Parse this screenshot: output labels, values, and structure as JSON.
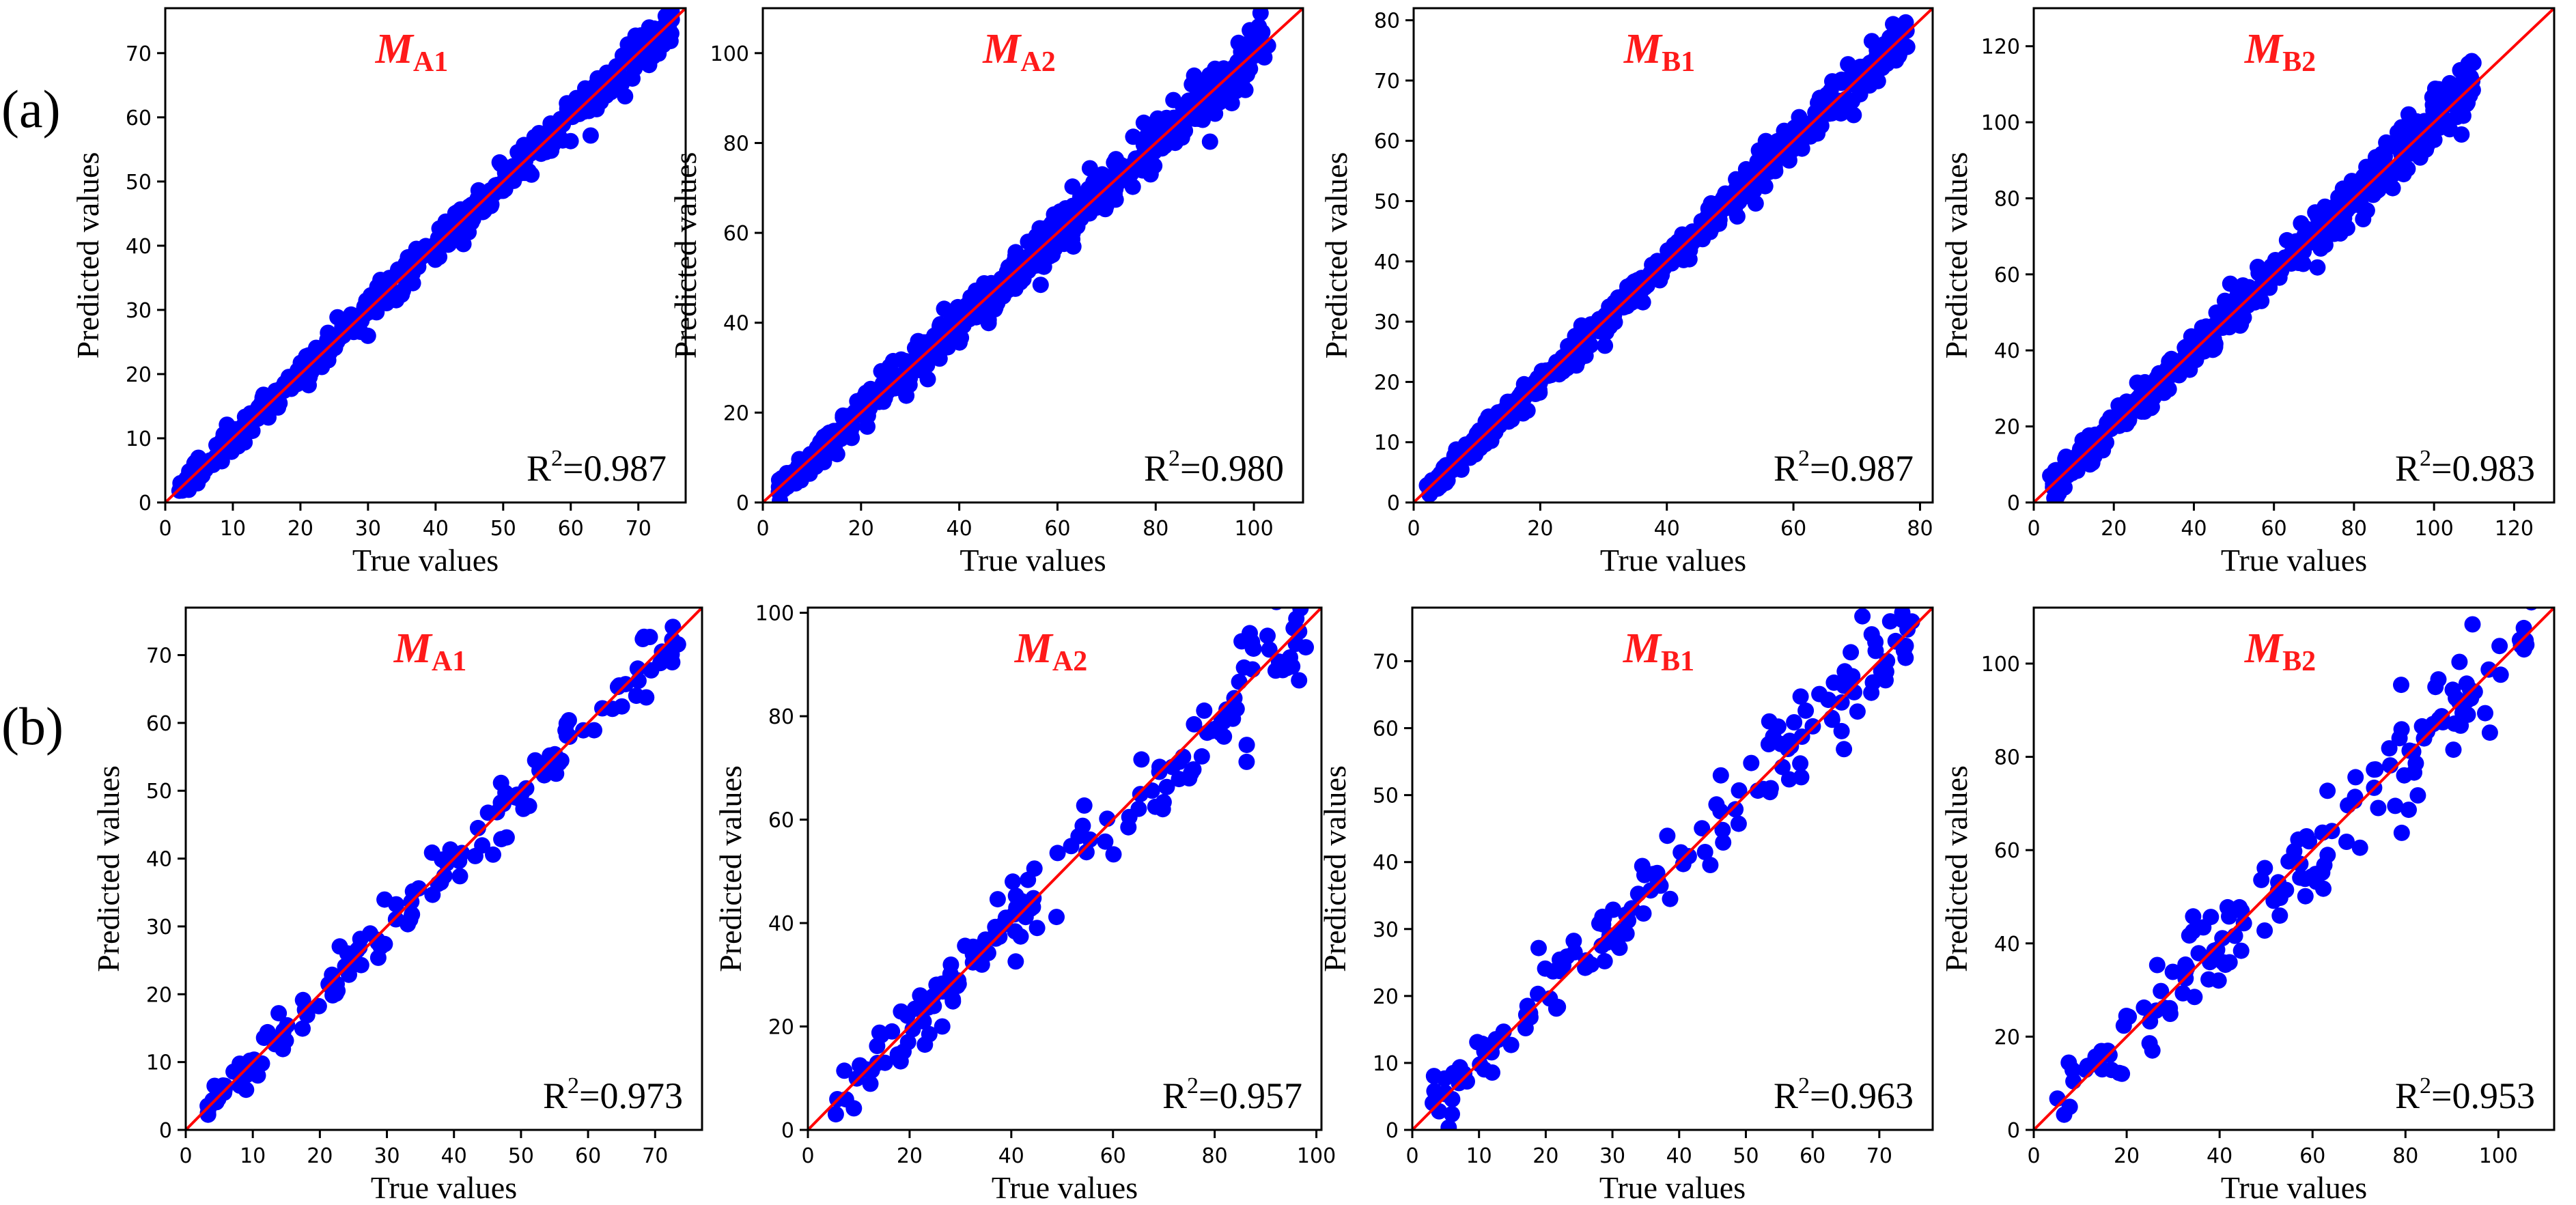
{
  "figure": {
    "row_labels": [
      "(a)",
      "(b)"
    ]
  },
  "colors": {
    "points": "#0000ff",
    "line": "#ff0000",
    "title": "#ff1a1a",
    "axis": "#000000"
  },
  "chart_data": [
    {
      "type": "scatter",
      "row": 0,
      "title_main": "M",
      "title_sub": "A1",
      "xlabel": "True values",
      "ylabel": "Predicted values",
      "r2_prefix": "R",
      "r2_sup": "2",
      "r2_value": "=0.987",
      "xlim": [
        0,
        77
      ],
      "ylim": [
        0,
        77
      ],
      "xticks": [
        0,
        10,
        20,
        30,
        40,
        50,
        60,
        70
      ],
      "yticks": [
        0,
        10,
        20,
        30,
        40,
        50,
        60,
        70
      ],
      "n_points": 460,
      "x_min": 2,
      "x_max": 75,
      "noise": 1.3,
      "reference_line": "y = x"
    },
    {
      "type": "scatter",
      "row": 0,
      "title_main": "M",
      "title_sub": "A2",
      "xlabel": "True values",
      "ylabel": "Predicted values",
      "r2_prefix": "R",
      "r2_sup": "2",
      "r2_value": "=0.980",
      "xlim": [
        0,
        110
      ],
      "ylim": [
        0,
        110
      ],
      "xticks": [
        0,
        20,
        40,
        60,
        80,
        100
      ],
      "yticks": [
        0,
        20,
        40,
        60,
        80,
        100
      ],
      "n_points": 560,
      "x_min": 3,
      "x_max": 103,
      "noise": 2.6,
      "reference_line": "y = x"
    },
    {
      "type": "scatter",
      "row": 0,
      "title_main": "M",
      "title_sub": "B1",
      "xlabel": "True values",
      "ylabel": "Predicted values",
      "r2_prefix": "R",
      "r2_sup": "2",
      "r2_value": "=0.987",
      "xlim": [
        0,
        82
      ],
      "ylim": [
        0,
        82
      ],
      "xticks": [
        0,
        20,
        40,
        60,
        80
      ],
      "yticks": [
        0,
        10,
        20,
        30,
        40,
        50,
        60,
        70,
        80
      ],
      "n_points": 520,
      "x_min": 2,
      "x_max": 78,
      "noise": 1.4,
      "reference_line": "y = x"
    },
    {
      "type": "scatter",
      "row": 0,
      "title_main": "M",
      "title_sub": "B2",
      "xlabel": "True values",
      "ylabel": "Predicted values",
      "r2_prefix": "R",
      "r2_sup": "2",
      "r2_value": "=0.983",
      "xlim": [
        0,
        130
      ],
      "ylim": [
        0,
        130
      ],
      "xticks": [
        0,
        20,
        40,
        60,
        80,
        100,
        120
      ],
      "yticks": [
        0,
        20,
        40,
        60,
        80,
        100,
        120
      ],
      "n_points": 520,
      "x_min": 4,
      "x_max": 110,
      "noise": 2.7,
      "reference_line": "y = x"
    },
    {
      "type": "scatter",
      "row": 1,
      "title_main": "M",
      "title_sub": "A1",
      "xlabel": "True values",
      "ylabel": "Predicted values",
      "r2_prefix": "R",
      "r2_sup": "2",
      "r2_value": "=0.973",
      "xlim": [
        0,
        77
      ],
      "ylim": [
        0,
        77
      ],
      "xticks": [
        0,
        10,
        20,
        30,
        40,
        50,
        60,
        70
      ],
      "yticks": [
        0,
        10,
        20,
        30,
        40,
        50,
        60,
        70
      ],
      "n_points": 150,
      "x_min": 3,
      "x_max": 74,
      "noise": 2.0,
      "reference_line": "y = x"
    },
    {
      "type": "scatter",
      "row": 1,
      "title_main": "M",
      "title_sub": "A2",
      "xlabel": "True values",
      "ylabel": "Predicted values",
      "r2_prefix": "R",
      "r2_sup": "2",
      "r2_value": "=0.957",
      "xlim": [
        0,
        101
      ],
      "ylim": [
        0,
        101
      ],
      "xticks": [
        0,
        20,
        40,
        60,
        80,
        100
      ],
      "yticks": [
        0,
        20,
        40,
        60,
        80,
        100
      ],
      "n_points": 150,
      "x_min": 5,
      "x_max": 98,
      "noise": 4.2,
      "reference_line": "y = x"
    },
    {
      "type": "scatter",
      "row": 1,
      "title_main": "M",
      "title_sub": "B1",
      "xlabel": "True values",
      "ylabel": "Predicted values",
      "r2_prefix": "R",
      "r2_sup": "2",
      "r2_value": "=0.963",
      "xlim": [
        0,
        78
      ],
      "ylim": [
        0,
        78
      ],
      "xticks": [
        0,
        10,
        20,
        30,
        40,
        50,
        60,
        70
      ],
      "yticks": [
        0,
        10,
        20,
        30,
        40,
        50,
        60,
        70
      ],
      "n_points": 150,
      "x_min": 3,
      "x_max": 75,
      "noise": 2.8,
      "reference_line": "y = x"
    },
    {
      "type": "scatter",
      "row": 1,
      "title_main": "M",
      "title_sub": "B2",
      "xlabel": "True values",
      "ylabel": "Predicted values",
      "r2_prefix": "R",
      "r2_sup": "2",
      "r2_value": "=0.953",
      "xlim": [
        0,
        112
      ],
      "ylim": [
        0,
        112
      ],
      "xticks": [
        0,
        20,
        40,
        60,
        80,
        100
      ],
      "yticks": [
        0,
        20,
        40,
        60,
        80,
        100
      ],
      "n_points": 150,
      "x_min": 5,
      "x_max": 108,
      "noise": 4.8,
      "reference_line": "y = x"
    }
  ]
}
